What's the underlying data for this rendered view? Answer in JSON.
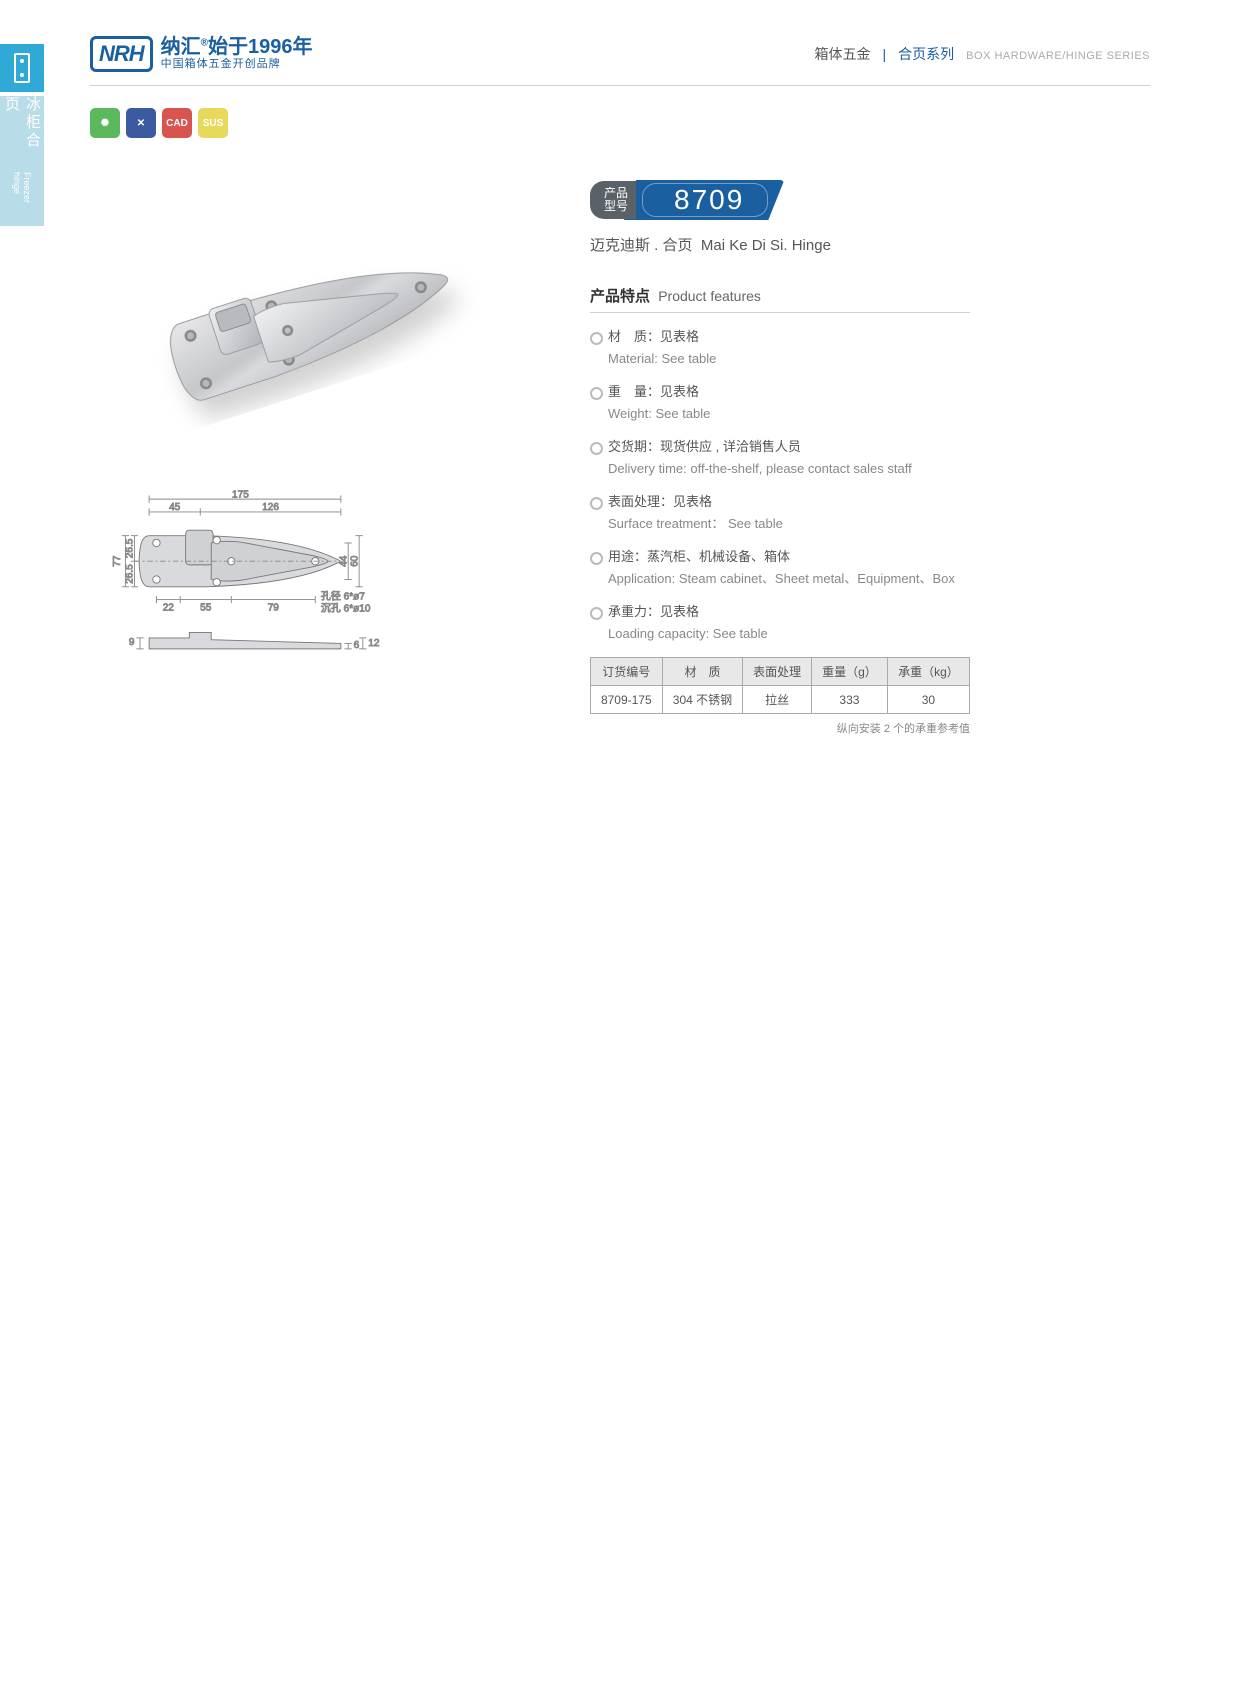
{
  "colors": {
    "brand_blue": "#1a5fa0",
    "side_tab": "#2fa9d6",
    "side_category": "#b8dce8",
    "model_label_bg": "#5a6268",
    "bullet_border": "#bbbbbb",
    "table_header_bg": "#e8e8e8",
    "border_gray": "#d0d0d0",
    "badge_green": "#5cb85c",
    "badge_blue": "#3b5aa0",
    "badge_red": "#d9534f",
    "badge_yellow": "#e8d95c"
  },
  "side": {
    "category_cn": "冰柜合页",
    "category_en": "Freezer hinge"
  },
  "header": {
    "logo_abbr": "NRH",
    "brand_cn": "纳汇",
    "reg": "®",
    "since": "始于1996年",
    "tagline": "中国箱体五金开创品牌",
    "cat1": "箱体五金",
    "cat2": "合页系列",
    "cat_en": "BOX HARDWARE/HINGE SERIES"
  },
  "badges": {
    "b1": "✺",
    "b2": "✕",
    "b3": "CAD",
    "b4": "SUS"
  },
  "model": {
    "label_l1": "产品",
    "label_l2": "型号",
    "number": "8709"
  },
  "product_name": {
    "cn": "迈克迪斯 . 合页",
    "en": "Mai Ke Di Si. Hinge"
  },
  "features": {
    "title_cn": "产品特点",
    "title_en": "Product features",
    "items": [
      {
        "cn": "材　质：见表格",
        "en": "Material: See table"
      },
      {
        "cn": "重　量：见表格",
        "en": "Weight: See table"
      },
      {
        "cn": "交货期：现货供应 , 详洽销售人员",
        "en": "Delivery time: off-the-shelf, please contact sales staff"
      },
      {
        "cn": "表面处理：见表格",
        "en": "Surface treatment： See table"
      },
      {
        "cn": "用途：蒸汽柜、机械设备、箱体",
        "en": "Application: Steam cabinet、Sheet metal、Equipment、Box"
      },
      {
        "cn": "承重力：见表格",
        "en": "Loading capacity: See table"
      }
    ]
  },
  "spec_table": {
    "headers": [
      "订货编号",
      "材　质",
      "表面处理",
      "重量（g）",
      "承重（kg）"
    ],
    "row": [
      "8709-175",
      "304 不锈钢",
      "拉丝",
      "333",
      "30"
    ]
  },
  "table_note": "纵向安装 2 个的承重参考值",
  "drawing": {
    "top": {
      "overall_w": "175",
      "left_w": "45",
      "right_w": "126",
      "overall_h": "77",
      "half_h_top": "26.5",
      "half_h_bot": "26.5",
      "inner_h1": "44",
      "inner_h2": "60",
      "bottom_d1": "22",
      "bottom_d2": "55",
      "bottom_d3": "79",
      "hole_note1": "孔径 6*ø7",
      "hole_note2": "沉孔 6*ø10"
    },
    "side": {
      "h_left": "9",
      "h_r1": "6",
      "h_r2": "12"
    }
  }
}
